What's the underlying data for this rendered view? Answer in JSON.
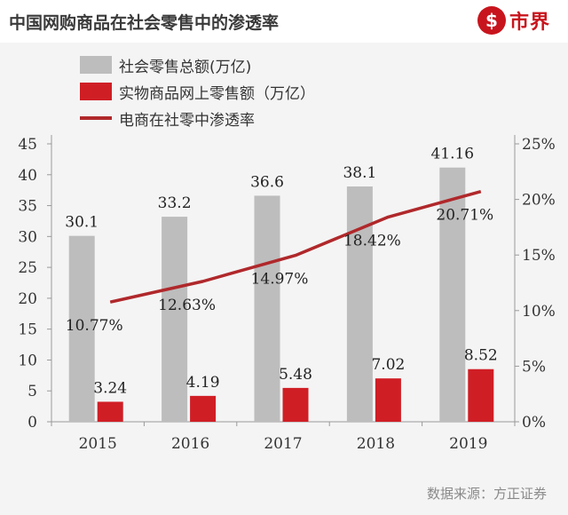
{
  "header": {
    "title": "中国网购商品在社会零售中的渗透率",
    "logo_mark": "$",
    "logo_text": "市界"
  },
  "source": "数据来源：方正证券",
  "colors": {
    "total_bar": "#bdbdbd",
    "online_bar": "#d01e25",
    "penetration_line": "#b0282b",
    "logo": "#c8151d"
  },
  "chart_data": {
    "type": "bar",
    "categories": [
      "2015",
      "2016",
      "2017",
      "2018",
      "2019"
    ],
    "series": [
      {
        "name": "社会零售总额(万亿)",
        "type": "bar",
        "axis": "left",
        "values": [
          30.1,
          33.2,
          36.6,
          38.1,
          41.16
        ],
        "labels": [
          "30.1",
          "33.2",
          "36.6",
          "38.1",
          "41.16"
        ]
      },
      {
        "name": "实物商品网上零售额（万亿）",
        "type": "bar",
        "axis": "left",
        "values": [
          3.24,
          4.19,
          5.48,
          7.02,
          8.52
        ],
        "labels": [
          "3.24",
          "4.19",
          "5.48",
          "7.02",
          "8.52"
        ]
      },
      {
        "name": "电商在社零中渗透率",
        "type": "line",
        "axis": "right",
        "values": [
          10.77,
          12.63,
          14.97,
          18.42,
          20.71
        ],
        "labels": [
          "10.77%",
          "12.63%",
          "14.97%",
          "18.42%",
          "20.71%"
        ]
      }
    ],
    "ylim_left": [
      0,
      45
    ],
    "ylim_right": [
      0,
      25
    ],
    "left_ticks": [
      "0",
      "5",
      "10",
      "15",
      "20",
      "25",
      "30",
      "35",
      "40",
      "45"
    ],
    "right_ticks": [
      "0%",
      "5%",
      "10%",
      "15%",
      "20%",
      "25%"
    ],
    "legend_position": "top-left",
    "grid": false
  }
}
